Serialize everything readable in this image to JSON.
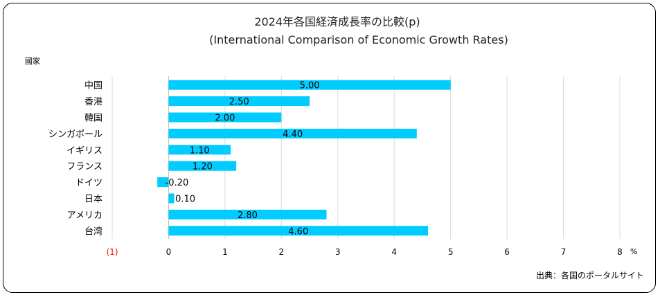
{
  "chart_data": {
    "type": "bar",
    "orientation": "horizontal",
    "title": "2024年各国経済成長率の比較(p)",
    "subtitle": "(International Comparison of Economic Growth Rates)",
    "ylabel": "國家",
    "xlabel": "%",
    "categories": [
      "中国",
      "香港",
      "韓国",
      "シンガポール",
      "イギリス",
      "フランス",
      "ドイツ",
      "日本",
      "アメリカ",
      "台湾"
    ],
    "values": [
      5.0,
      2.5,
      2.0,
      4.4,
      1.1,
      1.2,
      -0.2,
      0.1,
      2.8,
      4.6
    ],
    "data_labels": [
      "5.00",
      "2.50",
      "2.00",
      "4.40",
      "1.10",
      "1.20",
      "-0.20",
      "0.10",
      "2.80",
      "4.60"
    ],
    "xlim": [
      -1,
      8
    ],
    "x_ticks": [
      -1,
      0,
      1,
      2,
      3,
      4,
      5,
      6,
      7,
      8
    ],
    "x_tick_labels": [
      "(1)",
      "0",
      "1",
      "2",
      "3",
      "4",
      "5",
      "6",
      "7",
      "8"
    ],
    "negative_tick_color": "#ff0000",
    "bar_color": "#00ccff",
    "grid": "vertical",
    "source": "出典：各国のポータルサイト"
  }
}
